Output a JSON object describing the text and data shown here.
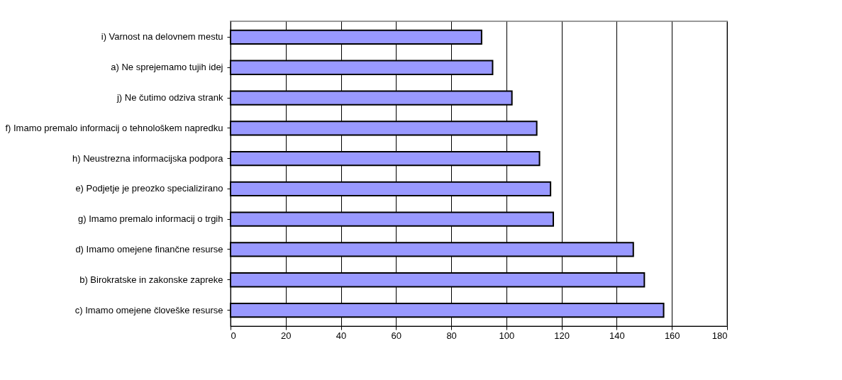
{
  "chart_data": {
    "type": "bar",
    "orientation": "horizontal",
    "categories": [
      "i) Varnost na delovnem mestu",
      "a) Ne sprejemamo tujih idej",
      "j) Ne čutimo odziva strank",
      "f) Imamo premalo informacij o tehnološkem napredku",
      "h) Neustrezna informacijska podpora",
      "e) Podjetje je preozko specializirano",
      "g) Imamo premalo informacij o trgih",
      "d) Imamo omejene finančne resurse",
      "b) Birokratske in zakonske zapreke",
      "c) Imamo omejene človeške resurse"
    ],
    "values": [
      91,
      95,
      102,
      111,
      112,
      116,
      117,
      146,
      150,
      157
    ],
    "color": "#9999ff",
    "xlim": [
      0,
      180
    ],
    "xticks": [
      0,
      20,
      40,
      60,
      80,
      100,
      120,
      140,
      160,
      180
    ],
    "grid": "x"
  }
}
